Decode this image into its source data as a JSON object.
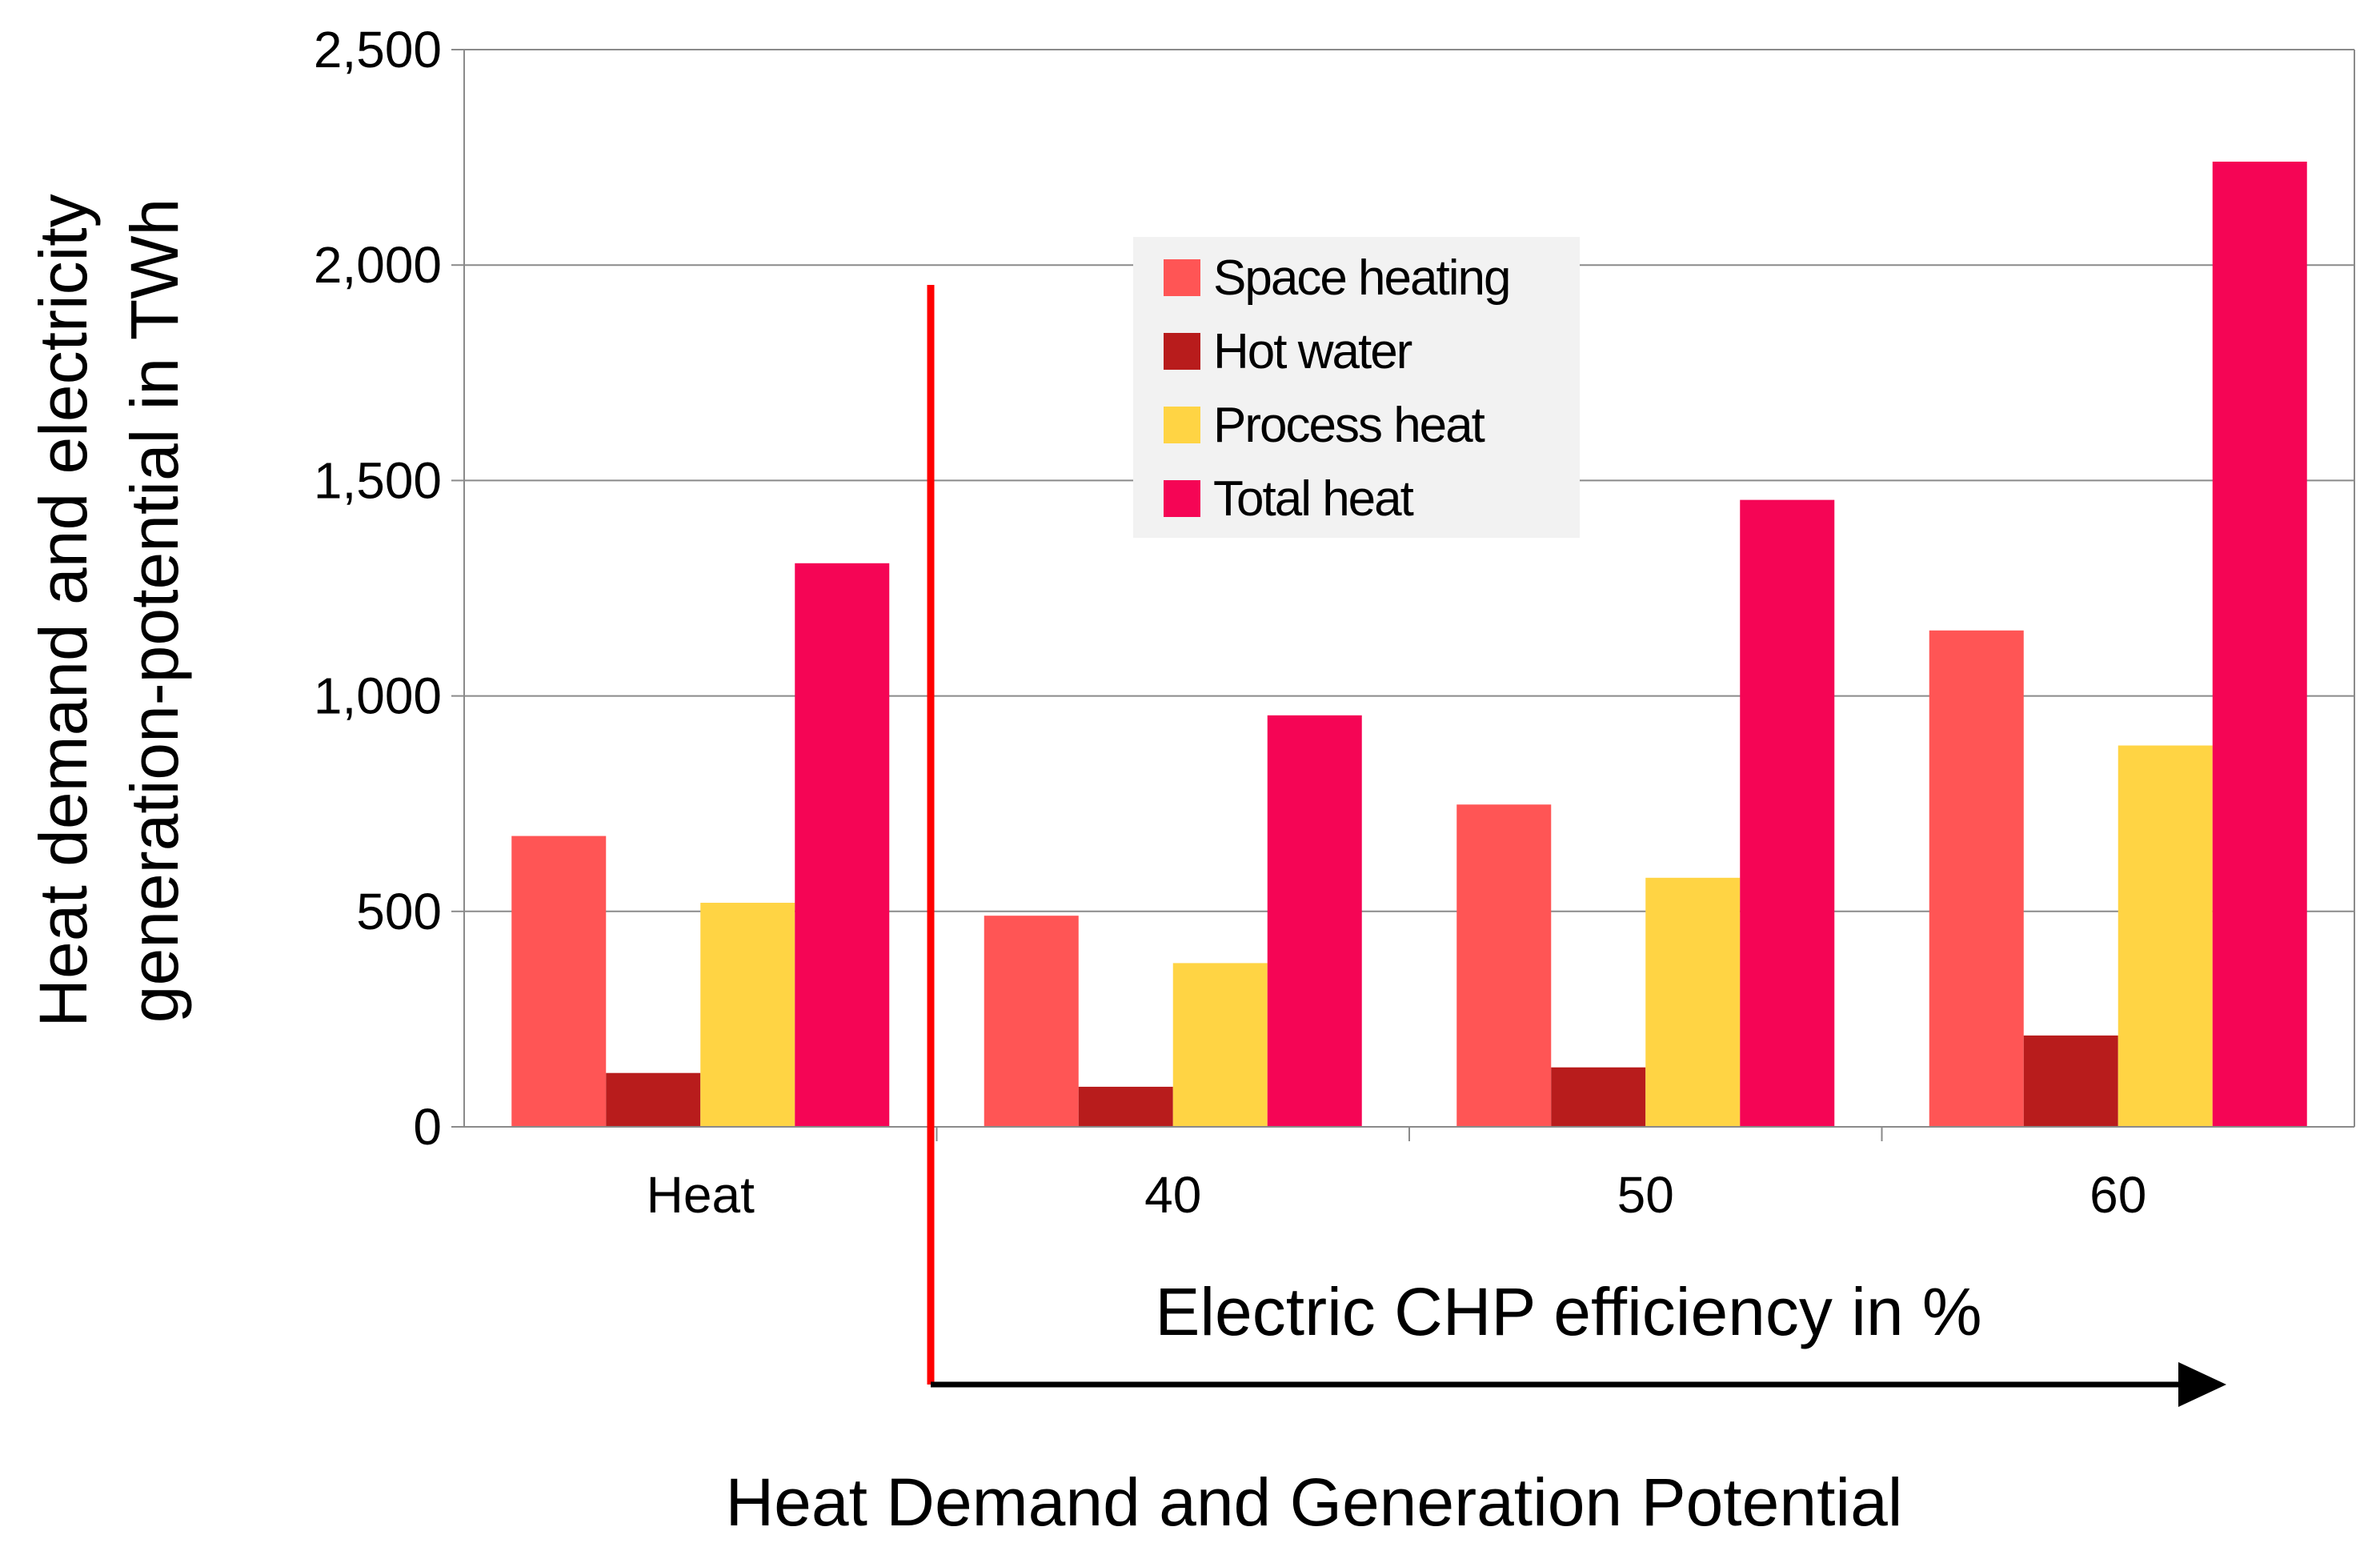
{
  "chart_data": {
    "type": "bar",
    "title": "",
    "xlabel": "Heat Demand and Generation Potential",
    "ylabel_lines": [
      "Heat demand and electricity",
      "generation-potential in TWh"
    ],
    "categories": [
      "Heat",
      "40",
      "50",
      "60"
    ],
    "annotation": "Electric CHP efficiency in %",
    "series": [
      {
        "name": "Space heating",
        "color": "#ff5555",
        "values": [
          675,
          490,
          748,
          1152
        ]
      },
      {
        "name": "Hot water",
        "color": "#b81c1c",
        "values": [
          125,
          93,
          138,
          212
        ]
      },
      {
        "name": "Process heat",
        "color": "#ffd444",
        "values": [
          520,
          380,
          578,
          885
        ]
      },
      {
        "name": "Total heat",
        "color": "#f50555",
        "values": [
          1308,
          955,
          1455,
          2240
        ]
      }
    ],
    "ylim": [
      0,
      2500
    ],
    "yticks": [
      0,
      500,
      1000,
      1500,
      2000,
      2500
    ],
    "ytick_labels": [
      "0",
      "500",
      "1,000",
      "1,500",
      "2,000",
      "2,500"
    ],
    "grid": true,
    "legend_position": "top-center",
    "divider_color": "#ff0000",
    "arrow_color": "#000000"
  }
}
